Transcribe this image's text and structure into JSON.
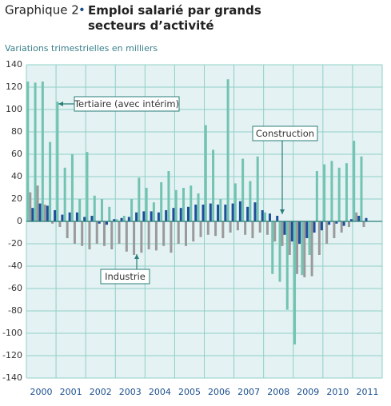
{
  "chart_data": {
    "type": "bar",
    "title_prefix": "Graphique 2",
    "title": "Emploi salarié par grands secteurs d’activité",
    "subtitle": "Variations trimestrielles en milliers",
    "years": [
      "2000",
      "2001",
      "2002",
      "2003",
      "2004",
      "2005",
      "2006",
      "2007",
      "2008",
      "2009",
      "2010",
      "2011"
    ],
    "ylim": [
      -140,
      140
    ],
    "yticks": [
      -140,
      -120,
      -100,
      -80,
      -60,
      -40,
      -20,
      0,
      20,
      40,
      60,
      80,
      100,
      120,
      140
    ],
    "grid": true,
    "series": [
      {
        "name": "Construction",
        "color": "#1f4e99",
        "values": [
          12,
          16,
          14,
          10,
          6,
          8,
          8,
          4,
          5,
          -2,
          -3,
          2,
          3,
          4,
          8,
          9,
          9,
          8,
          10,
          12,
          12,
          13,
          15,
          15,
          16,
          15,
          15,
          16,
          18,
          13,
          17,
          10,
          7,
          5,
          -12,
          -18,
          -20,
          -15,
          -10,
          -8,
          -3,
          -2,
          -4,
          2,
          5,
          3
        ]
      },
      {
        "name": "Industrie",
        "color": "#9a9a9a",
        "values": [
          26,
          32,
          15,
          -2,
          -5,
          -15,
          -20,
          -22,
          -25,
          -20,
          -22,
          -25,
          -20,
          -27,
          -30,
          -28,
          -25,
          -26,
          -22,
          -28,
          -20,
          -22,
          -18,
          -14,
          -12,
          -13,
          -15,
          -10,
          -8,
          -12,
          -15,
          -10,
          -12,
          -18,
          -22,
          -30,
          -47,
          -50,
          -49,
          -30,
          -20,
          -15,
          -10,
          -5,
          8,
          -5
        ]
      },
      {
        "name": "Tertiaire (avec intérim)",
        "color": "#72c3b2",
        "values": [
          125,
          124,
          125,
          71,
          107,
          48,
          60,
          20,
          62,
          23,
          20,
          13,
          2,
          5,
          20,
          39,
          30,
          17,
          35,
          45,
          28,
          30,
          32,
          25,
          86,
          64,
          20,
          127,
          34,
          56,
          36,
          58,
          8,
          -47,
          -54,
          -79,
          -110,
          -48,
          -30,
          45,
          51,
          54,
          48,
          52,
          72,
          58
        ]
      }
    ]
  }
}
